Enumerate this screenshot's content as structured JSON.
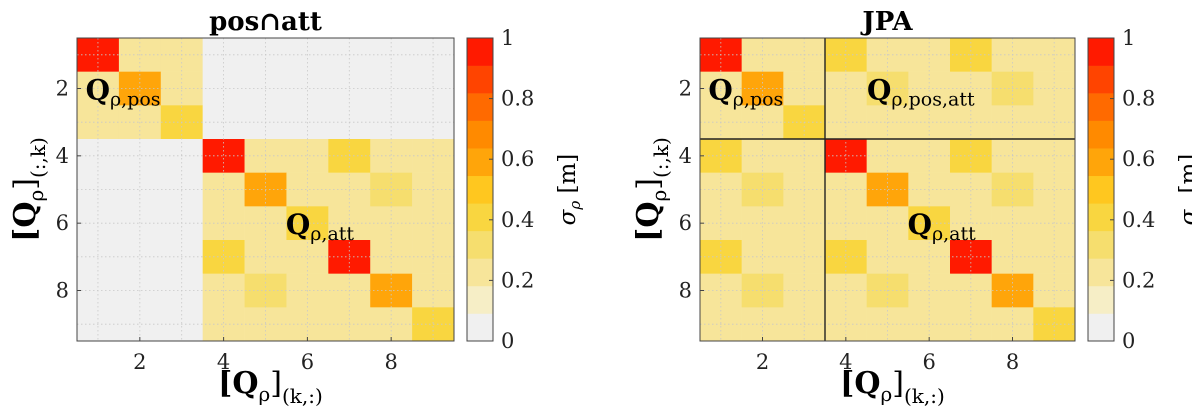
{
  "chart_data": [
    {
      "type": "heatmap",
      "title": "pos∩att",
      "xlabel": {
        "main": "[Q",
        "sub1": "ρ",
        "close": "]",
        "sub2": "(k,:)"
      },
      "ylabel": {
        "main": "[Q",
        "sub1": "ρ",
        "close": "]",
        "sub2": "(:,k)"
      },
      "x_ticks": [
        2,
        4,
        6,
        8
      ],
      "y_ticks": [
        2,
        4,
        6,
        8
      ],
      "annotations": [
        {
          "main": "Q",
          "sub": "ρ,pos",
          "row": 2,
          "col": 1.6
        },
        {
          "main": "Q",
          "sub": "ρ,att",
          "row": 6,
          "col": 6.3
        }
      ],
      "colorbar": {
        "label": "σ",
        "label_sub": "ρ",
        "label_unit": "[m]",
        "ticks": [
          "0",
          "0.2",
          "0.4",
          "0.6",
          "0.8",
          "1"
        ]
      },
      "values": [
        [
          1.0,
          0.25,
          0.25,
          0.0,
          0.0,
          0.0,
          0.0,
          0.0,
          0.0
        ],
        [
          0.25,
          0.65,
          0.25,
          0.0,
          0.0,
          0.0,
          0.0,
          0.0,
          0.0
        ],
        [
          0.25,
          0.25,
          0.45,
          0.0,
          0.0,
          0.0,
          0.0,
          0.0,
          0.0
        ],
        [
          0.0,
          0.0,
          0.0,
          1.0,
          0.25,
          0.25,
          0.4,
          0.2,
          0.2
        ],
        [
          0.0,
          0.0,
          0.0,
          0.25,
          0.65,
          0.25,
          0.2,
          0.35,
          0.2
        ],
        [
          0.0,
          0.0,
          0.0,
          0.25,
          0.25,
          0.45,
          0.2,
          0.2,
          0.25
        ],
        [
          0.0,
          0.0,
          0.0,
          0.45,
          0.2,
          0.2,
          1.0,
          0.25,
          0.25
        ],
        [
          0.0,
          0.0,
          0.0,
          0.2,
          0.35,
          0.2,
          0.25,
          0.65,
          0.25
        ],
        [
          0.0,
          0.0,
          0.0,
          0.2,
          0.2,
          0.25,
          0.25,
          0.25,
          0.45
        ]
      ]
    },
    {
      "type": "heatmap",
      "title": "JPA",
      "xlabel": {
        "main": "[Q",
        "sub1": "ρ",
        "close": "]",
        "sub2": "(k,:)"
      },
      "ylabel": {
        "main": "[Q",
        "sub1": "ρ",
        "close": "]",
        "sub2": "(:,k)"
      },
      "x_ticks": [
        2,
        4,
        6,
        8
      ],
      "y_ticks": [
        2,
        4,
        6,
        8
      ],
      "annotations": [
        {
          "main": "Q",
          "sub": "ρ,pos",
          "row": 2,
          "col": 1.6
        },
        {
          "main": "Q",
          "sub": "ρ,pos,att",
          "row": 2,
          "col": 5.8
        },
        {
          "main": "Q",
          "sub": "ρ,att",
          "row": 6,
          "col": 6.3
        }
      ],
      "block_lines": [
        3.5
      ],
      "colorbar": {
        "label": "σ",
        "label_sub": "ρ",
        "label_unit": "[m]",
        "ticks": [
          "0",
          "0.2",
          "0.4",
          "0.6",
          "0.8",
          "1"
        ]
      },
      "values": [
        [
          1.0,
          0.25,
          0.25,
          0.4,
          0.2,
          0.2,
          0.4,
          0.2,
          0.2
        ],
        [
          0.25,
          0.65,
          0.25,
          0.2,
          0.35,
          0.2,
          0.2,
          0.35,
          0.2
        ],
        [
          0.25,
          0.25,
          0.45,
          0.2,
          0.2,
          0.25,
          0.2,
          0.2,
          0.25
        ],
        [
          0.4,
          0.2,
          0.2,
          1.0,
          0.25,
          0.25,
          0.4,
          0.2,
          0.2
        ],
        [
          0.2,
          0.35,
          0.2,
          0.25,
          0.65,
          0.25,
          0.2,
          0.35,
          0.2
        ],
        [
          0.2,
          0.2,
          0.25,
          0.25,
          0.25,
          0.45,
          0.2,
          0.2,
          0.25
        ],
        [
          0.45,
          0.2,
          0.2,
          0.45,
          0.2,
          0.2,
          1.0,
          0.25,
          0.25
        ],
        [
          0.2,
          0.35,
          0.2,
          0.2,
          0.35,
          0.2,
          0.25,
          0.65,
          0.25
        ],
        [
          0.2,
          0.2,
          0.25,
          0.2,
          0.2,
          0.25,
          0.25,
          0.25,
          0.45
        ]
      ]
    }
  ]
}
